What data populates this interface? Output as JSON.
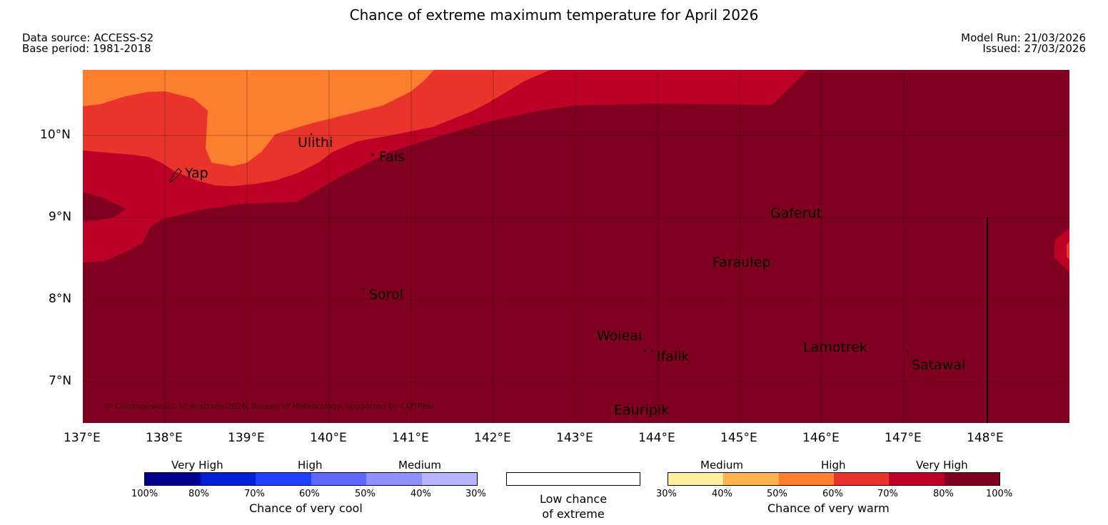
{
  "title": "Chance of extreme maximum temperature for April 2026",
  "meta": {
    "data_source": "Data source: ACCESS-S2",
    "base_period": "Base period: 1981-2018",
    "model_run": "Model Run: 21/03/2026",
    "issued": "Issued: 27/03/2026"
  },
  "map": {
    "copyright": "© Commonwealth of Australia 2026, Bureau of Meteorology, supported by COSPPac",
    "lat_ticks": [
      "10°N",
      "9°N",
      "8°N",
      "7°N"
    ],
    "lon_ticks": [
      "137°E",
      "138°E",
      "139°E",
      "140°E",
      "141°E",
      "142°E",
      "143°E",
      "144°E",
      "145°E",
      "146°E",
      "147°E",
      "148°E"
    ],
    "places": {
      "yap": "Yap",
      "ulithi": "Ulithi",
      "fais": "Fais",
      "sorol": "Sorol",
      "gaferut": "Gaferut",
      "faraulep": "Faraulep",
      "woleai": "Woleai",
      "ifalik": "Ifalik",
      "lamotrek": "Lamotrek",
      "satawal": "Satawal",
      "eauripik": "Eauripik"
    },
    "colors": {
      "very_high_warm": "#800020",
      "high_warm_upper": "#bd0026",
      "high_warm_lower": "#e8342a",
      "medium_warm_upper": "#fc7f2f",
      "medium_warm_lower": "#feb24c",
      "low": "#ffffff"
    }
  },
  "legend": {
    "cool": {
      "categories": [
        "Very High",
        "High",
        "Medium"
      ],
      "percentages": [
        "100%",
        "80%",
        "70%",
        "60%",
        "50%",
        "40%",
        "30%"
      ],
      "colors": [
        "#00008f",
        "#0020d8",
        "#2040ff",
        "#6068ff",
        "#9090ff",
        "#b4b4ff"
      ],
      "caption": "Chance of very cool"
    },
    "neutral": {
      "caption_line1": "Low chance",
      "caption_line2": "of extreme"
    },
    "warm": {
      "categories": [
        "Medium",
        "High",
        "Very High"
      ],
      "percentages": [
        "30%",
        "40%",
        "50%",
        "60%",
        "70%",
        "80%",
        "100%"
      ],
      "colors": [
        "#ffeda0",
        "#feb24c",
        "#fc7f2f",
        "#e8342a",
        "#bd0026",
        "#800020"
      ],
      "caption": "Chance of very warm"
    }
  }
}
